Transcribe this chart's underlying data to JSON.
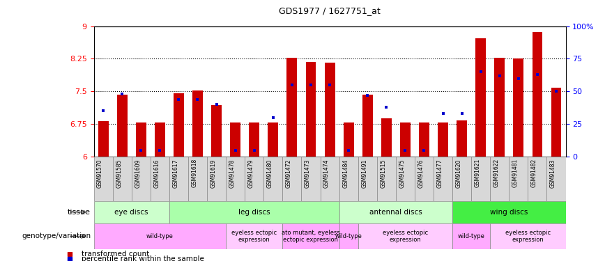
{
  "title": "GDS1977 / 1627751_at",
  "samples": [
    "GSM91570",
    "GSM91585",
    "GSM91609",
    "GSM91616",
    "GSM91617",
    "GSM91618",
    "GSM91619",
    "GSM91478",
    "GSM91479",
    "GSM91480",
    "GSM91472",
    "GSM91473",
    "GSM91474",
    "GSM91484",
    "GSM91491",
    "GSM91515",
    "GSM91475",
    "GSM91476",
    "GSM91477",
    "GSM91620",
    "GSM91621",
    "GSM91622",
    "GSM91481",
    "GSM91482",
    "GSM91483"
  ],
  "transformed_count": [
    6.82,
    7.42,
    6.78,
    6.79,
    7.45,
    7.52,
    7.18,
    6.78,
    6.78,
    6.78,
    8.28,
    8.17,
    8.16,
    6.78,
    7.42,
    6.88,
    6.78,
    6.78,
    6.78,
    6.83,
    8.72,
    8.28,
    8.25,
    8.87,
    7.58
  ],
  "percentile_rank": [
    35,
    48,
    5,
    5,
    44,
    44,
    40,
    5,
    5,
    30,
    55,
    55,
    55,
    5,
    47,
    38,
    5,
    5,
    33,
    33,
    65,
    62,
    60,
    63,
    50
  ],
  "ylim_left": [
    6,
    9
  ],
  "ylim_right": [
    0,
    100
  ],
  "yticks_left": [
    6,
    6.75,
    7.5,
    8.25,
    9
  ],
  "yticks_right": [
    0,
    25,
    50,
    75,
    100
  ],
  "hlines": [
    6.75,
    7.5,
    8.25
  ],
  "bar_color": "#cc0000",
  "percentile_color": "#0000cc",
  "bg_color": "#ffffff",
  "xticklabel_bg": "#dddddd",
  "tissue_groups": [
    {
      "label": "eye discs",
      "start": 0,
      "end": 3,
      "color": "#ccffcc"
    },
    {
      "label": "leg discs",
      "start": 4,
      "end": 12,
      "color": "#aaffaa"
    },
    {
      "label": "antennal discs",
      "start": 13,
      "end": 18,
      "color": "#ccffcc"
    },
    {
      "label": "wing discs",
      "start": 19,
      "end": 24,
      "color": "#44ee44"
    }
  ],
  "genotype_groups": [
    {
      "label": "wild-type",
      "start": 0,
      "end": 6,
      "color": "#ffaaff"
    },
    {
      "label": "eyeless ectopic\nexpression",
      "start": 7,
      "end": 9,
      "color": "#ffccff"
    },
    {
      "label": "ato mutant, eyeless\nectopic expression",
      "start": 10,
      "end": 12,
      "color": "#ffaaff"
    },
    {
      "label": "wild-type",
      "start": 13,
      "end": 13,
      "color": "#ffaaff"
    },
    {
      "label": "eyeless ectopic\nexpression",
      "start": 14,
      "end": 18,
      "color": "#ffccff"
    },
    {
      "label": "wild-type",
      "start": 19,
      "end": 20,
      "color": "#ffaaff"
    },
    {
      "label": "eyeless ectopic\nexpression",
      "start": 21,
      "end": 24,
      "color": "#ffccff"
    }
  ],
  "legend_items": [
    {
      "label": "transformed count",
      "color": "#cc0000"
    },
    {
      "label": "percentile rank within the sample",
      "color": "#0000cc"
    }
  ]
}
